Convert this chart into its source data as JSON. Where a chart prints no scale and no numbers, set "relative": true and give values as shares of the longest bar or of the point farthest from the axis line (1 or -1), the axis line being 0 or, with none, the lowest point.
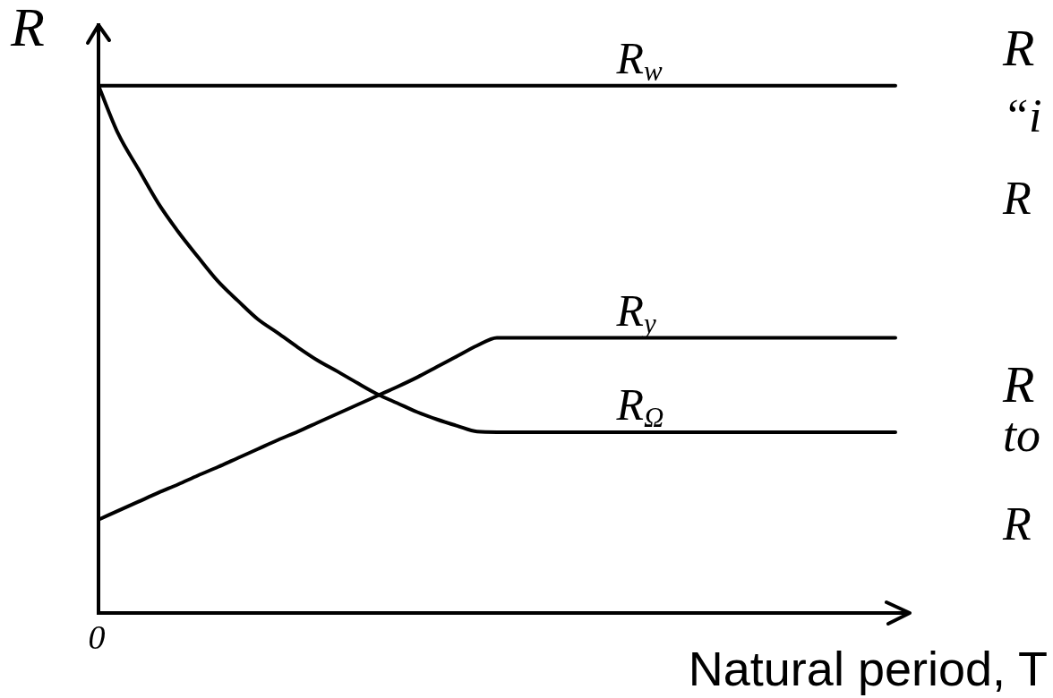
{
  "chart_data": {
    "type": "line",
    "ylabel": "R",
    "xlabel": "Natural period, T",
    "relative": true,
    "tick_labels": false,
    "categories": [
      null,
      null,
      null,
      null,
      null,
      null,
      null,
      null,
      null,
      null,
      null,
      null,
      null,
      null,
      null,
      null,
      null,
      null,
      null,
      null,
      null,
      null,
      null,
      null,
      null,
      null,
      null,
      null,
      null,
      null,
      null,
      null,
      null,
      null,
      null,
      null,
      null,
      null,
      null,
      null,
      null
    ],
    "series": [
      {
        "name": "R$_{w}$",
        "color": "#000000",
        "values": [
          1,
          1,
          1,
          1,
          1,
          1,
          1,
          1,
          1,
          1,
          1,
          1,
          1,
          1,
          1,
          1,
          1,
          1,
          1,
          1,
          1,
          1,
          1,
          1,
          1,
          1,
          1,
          1,
          1,
          1,
          1,
          1,
          1,
          1,
          1,
          1,
          1,
          1,
          1,
          1,
          1
        ]
      },
      {
        "name": "R$_{y}$",
        "color": "#000000",
        "values": [
          0.177,
          0.194,
          0.211,
          0.228,
          0.244,
          0.261,
          0.277,
          0.294,
          0.311,
          0.328,
          0.344,
          0.361,
          0.378,
          0.395,
          0.412,
          0.429,
          0.447,
          0.467,
          0.487,
          0.507,
          0.522,
          0.522,
          0.522,
          0.522,
          0.522,
          0.522,
          0.522,
          0.522,
          0.522,
          0.522,
          0.522,
          0.522,
          0.522,
          0.522,
          0.522,
          0.522,
          0.522,
          0.522,
          0.522,
          0.522,
          0.522
        ]
      },
      {
        "name": "R$_{Ω}$",
        "color": "#000000",
        "values": [
          1,
          0.908,
          0.842,
          0.777,
          0.723,
          0.675,
          0.629,
          0.592,
          0.557,
          0.531,
          0.504,
          0.479,
          0.458,
          0.436,
          0.415,
          0.398,
          0.381,
          0.367,
          0.355,
          0.344,
          0.343,
          0.343,
          0.343,
          0.343,
          0.343,
          0.343,
          0.343,
          0.343,
          0.343,
          0.343,
          0.343,
          0.343,
          0.343,
          0.343,
          0.343,
          0.343,
          0.343,
          0.343,
          0.343,
          0.343,
          0.343
        ]
      }
    ],
    "annotations": [
      "0",
      "R",
      "“i",
      "R",
      "R",
      "to",
      "R"
    ]
  }
}
